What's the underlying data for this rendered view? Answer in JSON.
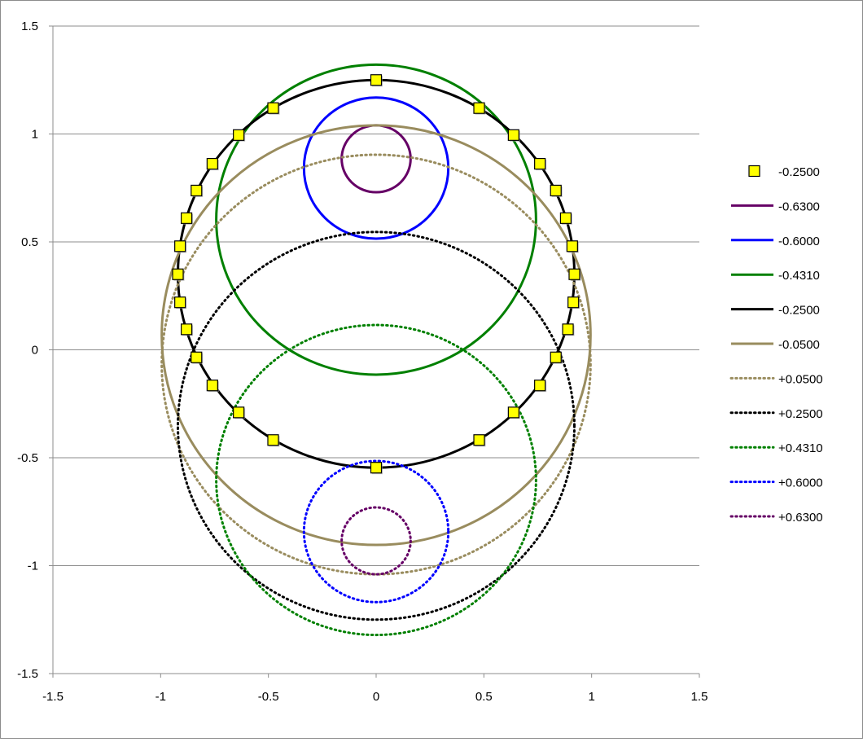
{
  "chart_data": {
    "type": "scatter",
    "xlim": [
      -1.5,
      1.5
    ],
    "ylim": [
      -1.5,
      1.5
    ],
    "x_ticks": [
      -1.5,
      -1,
      -0.5,
      0,
      0.5,
      1,
      1.5
    ],
    "y_ticks": [
      -1.5,
      -1,
      -0.5,
      0,
      0.5,
      1,
      1.5
    ],
    "x_tick_labels": [
      "-1.5",
      "-1",
      "-0.5",
      "0",
      "0.5",
      "1",
      "1.5"
    ],
    "y_tick_labels": [
      "-1.5",
      "-1",
      "-0.5",
      "0",
      "0.5",
      "1",
      "1.5"
    ],
    "grid": "horizontal",
    "legend_position": "right",
    "series": [
      {
        "name": "-0.2500",
        "style": "markers",
        "color": "#ffff00",
        "marker_edge": "#000000",
        "points": [
          [
            0,
            1.25
          ],
          [
            0.478,
            1.12
          ],
          [
            0.638,
            0.995
          ],
          [
            0.76,
            0.862
          ],
          [
            0.834,
            0.738
          ],
          [
            0.88,
            0.61
          ],
          [
            0.91,
            0.48
          ],
          [
            0.92,
            0.35
          ],
          [
            0.915,
            0.22
          ],
          [
            0.89,
            0.095
          ],
          [
            0.834,
            -0.035
          ],
          [
            0.76,
            -0.165
          ],
          [
            0.638,
            -0.29
          ],
          [
            0.478,
            -0.418
          ],
          [
            0,
            -0.546
          ],
          [
            -0.478,
            -0.418
          ],
          [
            -0.638,
            -0.29
          ],
          [
            -0.76,
            -0.165
          ],
          [
            -0.834,
            -0.035
          ],
          [
            -0.88,
            0.095
          ],
          [
            -0.91,
            0.22
          ],
          [
            -0.92,
            0.35
          ],
          [
            -0.91,
            0.48
          ],
          [
            -0.88,
            0.61
          ],
          [
            -0.834,
            0.738
          ],
          [
            -0.76,
            0.862
          ],
          [
            -0.638,
            0.995
          ],
          [
            -0.478,
            1.12
          ]
        ]
      },
      {
        "name": "-0.6300",
        "style": "solid",
        "color": "#660066",
        "cx": 0,
        "cy": 0.885,
        "rx": 0.16,
        "ry": 0.155
      },
      {
        "name": "-0.6000",
        "style": "solid",
        "color": "#0000ff",
        "cx": 0,
        "cy": 0.842,
        "rx": 0.335,
        "ry": 0.327
      },
      {
        "name": "-0.4310",
        "style": "solid",
        "color": "#008000",
        "cx": 0,
        "cy": 0.603,
        "rx": 0.742,
        "ry": 0.718
      },
      {
        "name": "-0.2500",
        "style": "solid",
        "color": "#000000",
        "cx": 0,
        "cy": 0.352,
        "rx": 0.92,
        "ry": 0.898
      },
      {
        "name": "-0.0500",
        "style": "solid",
        "color": "#998c5e",
        "cx": 0,
        "cy": 0.068,
        "rx": 0.995,
        "ry": 0.972
      },
      {
        "name": "+0.0500",
        "style": "dotted",
        "color": "#998c5e",
        "cx": 0,
        "cy": -0.068,
        "rx": 0.995,
        "ry": 0.972
      },
      {
        "name": "+0.2500",
        "style": "dotted",
        "color": "#000000",
        "cx": 0,
        "cy": -0.352,
        "rx": 0.92,
        "ry": 0.898
      },
      {
        "name": "+0.4310",
        "style": "dotted",
        "color": "#008000",
        "cx": 0,
        "cy": -0.603,
        "rx": 0.742,
        "ry": 0.718
      },
      {
        "name": "+0.6000",
        "style": "dotted",
        "color": "#0000ff",
        "cx": 0,
        "cy": -0.842,
        "rx": 0.335,
        "ry": 0.327
      },
      {
        "name": "+0.6300",
        "style": "dotted",
        "color": "#660066",
        "cx": 0,
        "cy": -0.885,
        "rx": 0.16,
        "ry": 0.155
      }
    ]
  }
}
